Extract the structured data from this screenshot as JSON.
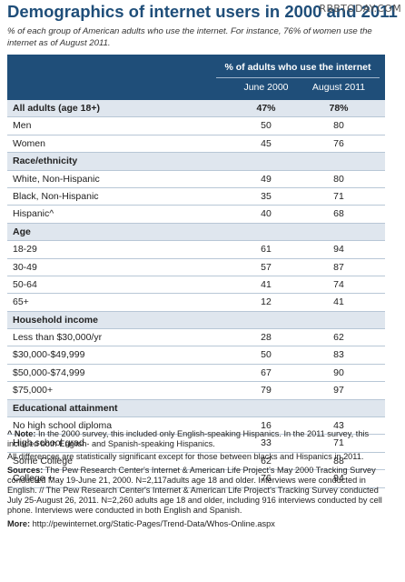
{
  "watermark": "RBBTODAY.COM",
  "chart_data": {
    "type": "table",
    "title": "Demographics of internet users in 2000 and 2011",
    "subtitle": "% of each group of American adults who use the internet. For instance, 76% of women use the internet as of August 2011.",
    "header": {
      "group_label": "% of adults who use the internet",
      "columns": [
        "June 2000",
        "August 2011"
      ]
    },
    "rows": [
      {
        "label": "All adults (age 18+)",
        "values": [
          "47%",
          "78%"
        ],
        "kind": "total"
      },
      {
        "label": "Men",
        "values": [
          "50",
          "80"
        ],
        "kind": "plain"
      },
      {
        "label": "Women",
        "values": [
          "45",
          "76"
        ],
        "kind": "plain"
      },
      {
        "label": "Race/ethnicity",
        "values": [
          "",
          ""
        ],
        "kind": "section"
      },
      {
        "label": "White, Non-Hispanic",
        "values": [
          "49",
          "80"
        ],
        "kind": "plain"
      },
      {
        "label": "Black, Non-Hispanic",
        "values": [
          "35",
          "71"
        ],
        "kind": "plain"
      },
      {
        "label": "Hispanic^",
        "values": [
          "40",
          "68"
        ],
        "kind": "plain"
      },
      {
        "label": "Age",
        "values": [
          "",
          ""
        ],
        "kind": "section"
      },
      {
        "label": "18-29",
        "values": [
          "61",
          "94"
        ],
        "kind": "plain"
      },
      {
        "label": "30-49",
        "values": [
          "57",
          "87"
        ],
        "kind": "plain"
      },
      {
        "label": "50-64",
        "values": [
          "41",
          "74"
        ],
        "kind": "plain"
      },
      {
        "label": "65+",
        "values": [
          "12",
          "41"
        ],
        "kind": "plain"
      },
      {
        "label": "Household income",
        "values": [
          "",
          ""
        ],
        "kind": "section"
      },
      {
        "label": "Less than $30,000/yr",
        "values": [
          "28",
          "62"
        ],
        "kind": "plain"
      },
      {
        "label": "$30,000-$49,999",
        "values": [
          "50",
          "83"
        ],
        "kind": "plain"
      },
      {
        "label": "$50,000-$74,999",
        "values": [
          "67",
          "90"
        ],
        "kind": "plain"
      },
      {
        "label": "$75,000+",
        "values": [
          "79",
          "97"
        ],
        "kind": "plain"
      },
      {
        "label": "Educational attainment",
        "values": [
          "",
          ""
        ],
        "kind": "section"
      },
      {
        "label": "No high school diploma",
        "values": [
          "16",
          "43"
        ],
        "kind": "plain"
      },
      {
        "label": "High school grad",
        "values": [
          "33",
          "71"
        ],
        "kind": "plain"
      },
      {
        "label": "Some College",
        "values": [
          "62",
          "88"
        ],
        "kind": "plain"
      },
      {
        "label": "College +",
        "values": [
          "76",
          "94"
        ],
        "kind": "plain"
      }
    ]
  },
  "notes": {
    "note_label": "^ Note:",
    "note_text": " In the 2000 survey, this included only English-speaking Hispanics. In the 2011 survey, this included both English- and Spanish-speaking Hispanics.",
    "significance": "All differences are statistically significant except for those between blacks and Hispanics in 2011.",
    "sources_label": "Sources:",
    "sources_text": " The Pew Research Center's Internet & American Life Project's May 2000 Tracking Survey conducted May 19-June 21, 2000. N=2,117adults age 18 and older. Interviews were conducted in English. // The Pew Research Center's Internet & American Life Project's Tracking Survey conducted July 25-August 26, 2011. N=2,260 adults age 18 and older, including 916 interviews conducted by cell phone. Interviews were conducted in both English and Spanish.",
    "more_label": "More:",
    "more_text": " http://pewinternet.org/Static-Pages/Trend-Data/Whos-Online.aspx"
  }
}
